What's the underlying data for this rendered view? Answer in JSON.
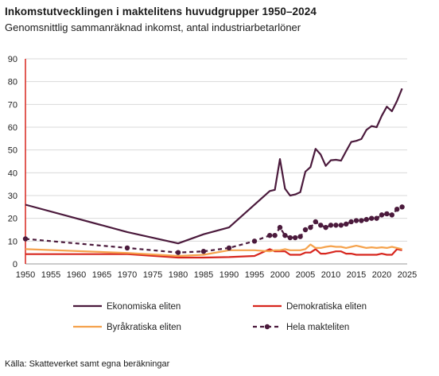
{
  "title": "Inkomstutvecklingen i maktelitens huvudgrupper 1950–2024",
  "subtitle": "Genomsnittlig sammanräknad inkomst, antal industriarbetarlöner",
  "source": "Källa: Skatteverket samt egna beräkningar",
  "chart_data": {
    "type": "line",
    "title": "Inkomstutvecklingen i maktelitens huvudgrupper 1950–2024",
    "subtitle": "Genomsnittlig sammanräknad inkomst, antal industriarbetarlöner",
    "xlabel": "",
    "ylabel": "",
    "xlim": [
      1950,
      2025
    ],
    "ylim": [
      0,
      90
    ],
    "xticks": [
      1950,
      1955,
      1960,
      1965,
      1970,
      1975,
      1980,
      1985,
      1990,
      1995,
      2000,
      2005,
      2010,
      2015,
      2020,
      2025
    ],
    "yticks": [
      0,
      10,
      20,
      30,
      40,
      50,
      60,
      70,
      80,
      90
    ],
    "grid": "horizontal",
    "legend": "bottom",
    "series": [
      {
        "name": "Ekonomiska eliten",
        "color": "#4b1a3c",
        "style": "solid",
        "points": [
          [
            1950,
            26
          ],
          [
            1970,
            14
          ],
          [
            1980,
            9
          ],
          [
            1985,
            13
          ],
          [
            1990,
            16
          ],
          [
            1998,
            32
          ],
          [
            1999,
            32.5
          ],
          [
            2000,
            46
          ],
          [
            2001,
            33
          ],
          [
            2002,
            30
          ],
          [
            2003,
            30.5
          ],
          [
            2004,
            31.5
          ],
          [
            2005,
            40.5
          ],
          [
            2006,
            42.5
          ],
          [
            2007,
            50.5
          ],
          [
            2008,
            48
          ],
          [
            2009,
            43
          ],
          [
            2010,
            45.5
          ],
          [
            2011,
            45.7
          ],
          [
            2012,
            45.3
          ],
          [
            2013,
            49.5
          ],
          [
            2014,
            53.5
          ],
          [
            2015,
            54
          ],
          [
            2016,
            54.8
          ],
          [
            2017,
            58.8
          ],
          [
            2018,
            60.5
          ],
          [
            2019,
            60
          ],
          [
            2020,
            65
          ],
          [
            2021,
            69
          ],
          [
            2022,
            67
          ],
          [
            2023,
            71.5
          ],
          [
            2024,
            77
          ]
        ]
      },
      {
        "name": "Demokratiska eliten",
        "color": "#d7261e",
        "style": "solid",
        "points": [
          [
            1950,
            4.3
          ],
          [
            1970,
            4.3
          ],
          [
            1980,
            2.8
          ],
          [
            1985,
            2.8
          ],
          [
            1990,
            3
          ],
          [
            1995,
            3.5
          ],
          [
            1998,
            6.5
          ],
          [
            1999,
            5.5
          ],
          [
            2000,
            5.5
          ],
          [
            2001,
            5.5
          ],
          [
            2002,
            4
          ],
          [
            2003,
            4
          ],
          [
            2004,
            4
          ],
          [
            2005,
            5
          ],
          [
            2006,
            5
          ],
          [
            2007,
            6.5
          ],
          [
            2008,
            4.5
          ],
          [
            2009,
            4.5
          ],
          [
            2010,
            5
          ],
          [
            2011,
            5.5
          ],
          [
            2012,
            5.5
          ],
          [
            2013,
            4.5
          ],
          [
            2014,
            4.5
          ],
          [
            2015,
            4
          ],
          [
            2016,
            4
          ],
          [
            2017,
            4
          ],
          [
            2018,
            4
          ],
          [
            2019,
            4
          ],
          [
            2020,
            4.5
          ],
          [
            2021,
            4
          ],
          [
            2022,
            4
          ],
          [
            2023,
            6.5
          ],
          [
            2024,
            6
          ]
        ]
      },
      {
        "name": "Byråkratiska eliten",
        "color": "#f5a24c",
        "style": "solid",
        "points": [
          [
            1950,
            6.5
          ],
          [
            1970,
            4.8
          ],
          [
            1980,
            3.5
          ],
          [
            1985,
            4
          ],
          [
            1990,
            6
          ],
          [
            1995,
            6
          ],
          [
            1998,
            5.5
          ],
          [
            1999,
            6
          ],
          [
            2000,
            6
          ],
          [
            2001,
            6.5
          ],
          [
            2002,
            6
          ],
          [
            2003,
            6
          ],
          [
            2004,
            6
          ],
          [
            2005,
            6.5
          ],
          [
            2006,
            8.5
          ],
          [
            2007,
            7
          ],
          [
            2008,
            7
          ],
          [
            2009,
            7.5
          ],
          [
            2010,
            7.8
          ],
          [
            2011,
            7.5
          ],
          [
            2012,
            7.5
          ],
          [
            2013,
            7
          ],
          [
            2014,
            7.5
          ],
          [
            2015,
            8
          ],
          [
            2016,
            7.5
          ],
          [
            2017,
            7
          ],
          [
            2018,
            7.3
          ],
          [
            2019,
            7
          ],
          [
            2020,
            7.3
          ],
          [
            2021,
            7
          ],
          [
            2022,
            7.5
          ],
          [
            2023,
            7
          ],
          [
            2024,
            6.5
          ]
        ]
      },
      {
        "name": "Hela makteliten",
        "color": "#4b1a3c",
        "style": "dashed-markers",
        "points": [
          [
            1950,
            11
          ],
          [
            1970,
            7
          ],
          [
            1980,
            5
          ],
          [
            1985,
            5.5
          ],
          [
            1990,
            7
          ],
          [
            1995,
            10
          ],
          [
            1998,
            12.5
          ],
          [
            1999,
            12.5
          ],
          [
            2000,
            16
          ],
          [
            2001,
            12.5
          ],
          [
            2002,
            11.5
          ],
          [
            2003,
            11.5
          ],
          [
            2004,
            12
          ],
          [
            2005,
            15
          ],
          [
            2006,
            16
          ],
          [
            2007,
            18.5
          ],
          [
            2008,
            17
          ],
          [
            2009,
            16
          ],
          [
            2010,
            17
          ],
          [
            2011,
            17
          ],
          [
            2012,
            17
          ],
          [
            2013,
            17.5
          ],
          [
            2014,
            18.5
          ],
          [
            2015,
            19
          ],
          [
            2016,
            19
          ],
          [
            2017,
            19.5
          ],
          [
            2018,
            20
          ],
          [
            2019,
            20
          ],
          [
            2020,
            21.5
          ],
          [
            2021,
            22
          ],
          [
            2022,
            21.5
          ],
          [
            2023,
            24
          ],
          [
            2024,
            25
          ]
        ]
      }
    ]
  }
}
